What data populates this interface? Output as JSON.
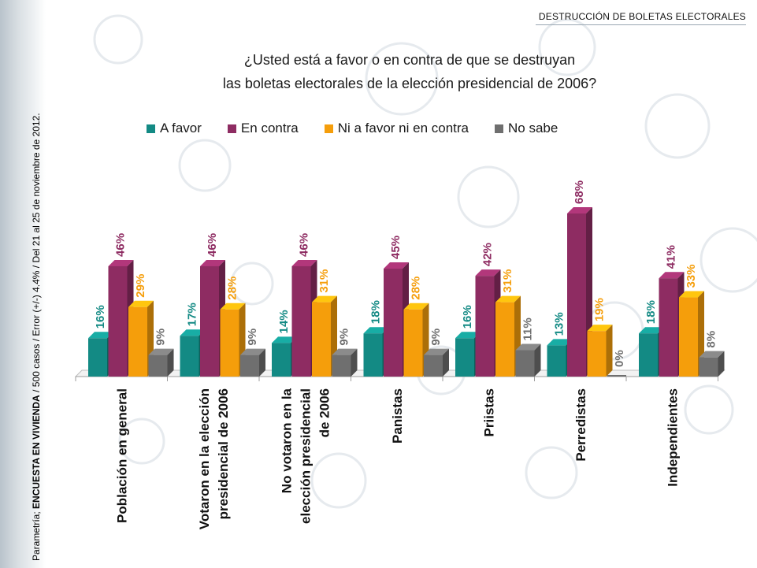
{
  "header": "DESTRUCCIÓN DE BOLETAS ELECTORALES",
  "source": {
    "prefix": "Parametría; ",
    "bold": "ENCUESTA EN VIVIENDA",
    "suffix": " / 500 casos / Error (+/-) 4.4% / Del 21 al 25 de noviembre de 2012."
  },
  "colors": {
    "a_favor": "#138a84",
    "en_contra": "#8e2c62",
    "ni": "#f59e0b",
    "no_sabe": "#6f6f6f"
  },
  "chart_data": {
    "type": "bar",
    "title_lines": [
      "¿Usted está a favor o en contra de que se destruyan",
      "las boletas electorales de la elección presidencial de 2006?"
    ],
    "categories": [
      [
        "Población en general"
      ],
      [
        "Votaron en la elección",
        "presidencial de 2006"
      ],
      [
        "No votaron en la",
        "elección presidencial",
        "de 2006"
      ],
      [
        "Panistas"
      ],
      [
        "Priistas"
      ],
      [
        "Perredistas"
      ],
      [
        "Independientes"
      ]
    ],
    "series": [
      {
        "name": "A favor",
        "values": [
          16,
          17,
          14,
          18,
          16,
          13,
          18
        ]
      },
      {
        "name": "En contra",
        "values": [
          46,
          46,
          46,
          45,
          42,
          68,
          41
        ]
      },
      {
        "name": "Ni a favor ni en contra",
        "values": [
          29,
          28,
          31,
          28,
          31,
          19,
          33
        ]
      },
      {
        "name": "No sabe",
        "values": [
          9,
          9,
          9,
          9,
          11,
          0,
          8
        ]
      }
    ],
    "unit": "%",
    "ylim": [
      0,
      70
    ],
    "legend": "top",
    "grid": false
  }
}
